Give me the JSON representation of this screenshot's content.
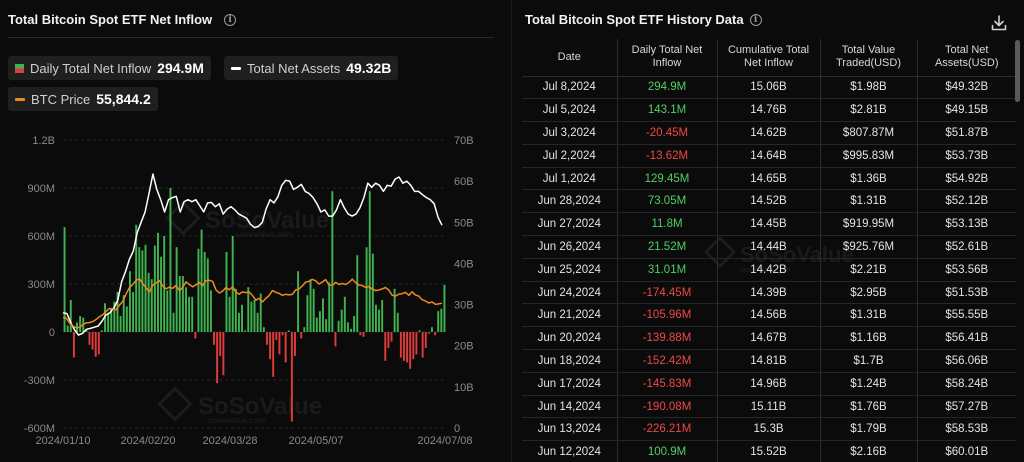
{
  "left_panel": {
    "title": "Total Bitcoin Spot ETF Net Inflow",
    "legend": {
      "daily_label": "Daily Total Net Inflow",
      "daily_value": "294.9M",
      "assets_label": "Total Net Assets",
      "assets_value": "49.32B",
      "btc_label": "BTC Price",
      "btc_value": "55,844.2"
    },
    "watermark": "SoSoValue",
    "watermark_url": "sosovalue.com"
  },
  "colors": {
    "inflow_positive": "#3fb34f",
    "inflow_negative": "#e23b3b",
    "net_assets_line": "#ffffff",
    "btc_price_line": "#f08a1c",
    "background": "#0b0b0b"
  },
  "chart_data": {
    "type": "bar",
    "title": "Total Bitcoin Spot ETF Net Inflow",
    "x_tick_labels": [
      "2024/01/10",
      "2024/02/20",
      "2024/03/28",
      "2024/05/07",
      "2024/07/08"
    ],
    "y_left": {
      "ticks": [
        "1.2B",
        "900M",
        "600M",
        "300M",
        "0",
        "-300M",
        "-600M"
      ],
      "range_millions": [
        -600,
        1200
      ]
    },
    "y_right": {
      "ticks": [
        "70B",
        "60B",
        "50B",
        "40B",
        "30B",
        "20B",
        "10B",
        "0"
      ],
      "range_billions": [
        0,
        70
      ]
    },
    "legend_placement": "top-left",
    "series": [
      {
        "name": "Daily Total Net Inflow",
        "unit": "M",
        "values": [
          655,
          40,
          200,
          -160,
          60,
          100,
          90,
          20,
          -80,
          -110,
          -155,
          -140,
          10,
          180,
          120,
          150,
          190,
          250,
          100,
          230,
          160,
          380,
          250,
          670,
          530,
          510,
          545,
          370,
          330,
          540,
          620,
          470,
          600,
          260,
          900,
          120,
          530,
          350,
          350,
          280,
          220,
          220,
          -40,
          520,
          640,
          500,
          460,
          260,
          -80,
          -320,
          -150,
          -270,
          500,
          220,
          600,
          270,
          120,
          170,
          10,
          280,
          190,
          200,
          120,
          240,
          30,
          -80,
          -170,
          -280,
          -50,
          -140,
          -20,
          -190,
          10,
          -560,
          -150,
          380,
          -40,
          30,
          230,
          330,
          270,
          90,
          130,
          210,
          80,
          310,
          880,
          -90,
          70,
          140,
          220,
          60,
          20,
          100,
          480,
          -20,
          -30,
          530,
          880,
          490,
          170,
          140,
          200,
          -180,
          -100,
          -60,
          270,
          120,
          -160,
          -180,
          -190,
          -230,
          -170,
          -140,
          10,
          -160,
          -100,
          -10,
          30,
          -20,
          130,
          145,
          295
        ]
      },
      {
        "name": "Total Net Assets",
        "unit": "B",
        "values": [
          28,
          27.8,
          25.6,
          23.8,
          22.6,
          23,
          24,
          24.2,
          24.5,
          24.8,
          26,
          27.5,
          28,
          29.2,
          31,
          35.5,
          38,
          41,
          43,
          47.5,
          50,
          52.5,
          57,
          61.7,
          58,
          55.5,
          52.5,
          55.5,
          56,
          56.3,
          52.5,
          55,
          55.5,
          55,
          55.5,
          54,
          52.5,
          54.7,
          54.8,
          53.8,
          54.5,
          52,
          53.2,
          53.8,
          53,
          52,
          51.5,
          51,
          49.5,
          48.7,
          49,
          50,
          53.3,
          55.5,
          54.7,
          56.2,
          59,
          60.2,
          60,
          58,
          58.5,
          59.2,
          57.5,
          57,
          56,
          54.5,
          52.5,
          53,
          51.5,
          51.5,
          53,
          55.5,
          53.5,
          52,
          51.5,
          52,
          53.5,
          56,
          59.5,
          58.5,
          59.5,
          59,
          57.5,
          59,
          58.8,
          60.5,
          61,
          59.5,
          60,
          59,
          57.5,
          57.5,
          56.7,
          56,
          55.5,
          54.5,
          51.2,
          49.3
        ]
      },
      {
        "name": "BTC Price",
        "unit": "USD",
        "values": [
          46500,
          46000,
          42700,
          40800,
          39800,
          40000,
          41800,
          42900,
          43100,
          43800,
          45200,
          47000,
          48300,
          50500,
          52300,
          52000,
          51500,
          54500,
          57000,
          62000,
          66000,
          68000,
          70700,
          71700,
          68500,
          65800,
          63000,
          67500,
          69000,
          70600,
          67000,
          65200,
          66200,
          65500,
          67300,
          64000,
          66000,
          69700,
          68000,
          66500,
          67800,
          69200,
          67200,
          70500,
          70700,
          70000,
          64500,
          62400,
          63600,
          66000,
          64500,
          66400,
          63000,
          61600,
          63200,
          62700,
          63000,
          60800,
          57700,
          58900,
          56600,
          58900,
          60800,
          64000,
          62900,
          62200,
          60900,
          61600,
          61200,
          61500,
          64400,
          65100,
          67100,
          69600,
          70000,
          71300,
          70400,
          68300,
          69600,
          71200,
          67700,
          67300,
          69400,
          68000,
          68600,
          68000,
          69300,
          71500,
          69200,
          67600,
          67400,
          66000,
          66700,
          65000,
          64000,
          64400,
          65100,
          66000,
          64300,
          61000,
          60400,
          61700,
          62000,
          62900,
          60900,
          63200,
          61200,
          60400,
          58100,
          57300,
          55900,
          56600,
          55000,
          55300,
          55800
        ]
      }
    ]
  },
  "right_panel": {
    "title": "Total Bitcoin Spot ETF History Data",
    "columns": [
      "Date",
      "Daily Total Net\nInflow",
      "Cumulative Total\nNet Inflow",
      "Total Value\nTraded(USD)",
      "Total Net\nAssets(USD)"
    ],
    "rows": [
      {
        "date": "Jul 8,2024",
        "inflow": "294.9M",
        "cumulative": "15.06B",
        "traded": "$1.98B",
        "assets": "$49.32B",
        "sign": "pos"
      },
      {
        "date": "Jul 5,2024",
        "inflow": "143.1M",
        "cumulative": "14.76B",
        "traded": "$2.81B",
        "assets": "$49.15B",
        "sign": "pos"
      },
      {
        "date": "Jul 3,2024",
        "inflow": "-20.45M",
        "cumulative": "14.62B",
        "traded": "$807.87M",
        "assets": "$51.87B",
        "sign": "neg"
      },
      {
        "date": "Jul 2,2024",
        "inflow": "-13.62M",
        "cumulative": "14.64B",
        "traded": "$995.83M",
        "assets": "$53.73B",
        "sign": "neg"
      },
      {
        "date": "Jul 1,2024",
        "inflow": "129.45M",
        "cumulative": "14.65B",
        "traded": "$1.36B",
        "assets": "$54.92B",
        "sign": "pos"
      },
      {
        "date": "Jun 28,2024",
        "inflow": "73.05M",
        "cumulative": "14.52B",
        "traded": "$1.31B",
        "assets": "$52.12B",
        "sign": "pos"
      },
      {
        "date": "Jun 27,2024",
        "inflow": "11.8M",
        "cumulative": "14.45B",
        "traded": "$919.95M",
        "assets": "$53.13B",
        "sign": "pos"
      },
      {
        "date": "Jun 26,2024",
        "inflow": "21.52M",
        "cumulative": "14.44B",
        "traded": "$925.76M",
        "assets": "$52.61B",
        "sign": "pos"
      },
      {
        "date": "Jun 25,2024",
        "inflow": "31.01M",
        "cumulative": "14.42B",
        "traded": "$2.21B",
        "assets": "$53.56B",
        "sign": "pos"
      },
      {
        "date": "Jun 24,2024",
        "inflow": "-174.45M",
        "cumulative": "14.39B",
        "traded": "$2.95B",
        "assets": "$51.53B",
        "sign": "neg"
      },
      {
        "date": "Jun 21,2024",
        "inflow": "-105.96M",
        "cumulative": "14.56B",
        "traded": "$1.31B",
        "assets": "$55.55B",
        "sign": "neg"
      },
      {
        "date": "Jun 20,2024",
        "inflow": "-139.88M",
        "cumulative": "14.67B",
        "traded": "$1.16B",
        "assets": "$56.41B",
        "sign": "neg"
      },
      {
        "date": "Jun 18,2024",
        "inflow": "-152.42M",
        "cumulative": "14.81B",
        "traded": "$1.7B",
        "assets": "$56.06B",
        "sign": "neg"
      },
      {
        "date": "Jun 17,2024",
        "inflow": "-145.83M",
        "cumulative": "14.96B",
        "traded": "$1.24B",
        "assets": "$58.24B",
        "sign": "neg"
      },
      {
        "date": "Jun 14,2024",
        "inflow": "-190.08M",
        "cumulative": "15.11B",
        "traded": "$1.76B",
        "assets": "$57.27B",
        "sign": "neg"
      },
      {
        "date": "Jun 13,2024",
        "inflow": "-226.21M",
        "cumulative": "15.3B",
        "traded": "$1.79B",
        "assets": "$58.53B",
        "sign": "neg"
      },
      {
        "date": "Jun 12,2024",
        "inflow": "100.9M",
        "cumulative": "15.52B",
        "traded": "$2.16B",
        "assets": "$60.01B",
        "sign": "pos"
      }
    ]
  }
}
